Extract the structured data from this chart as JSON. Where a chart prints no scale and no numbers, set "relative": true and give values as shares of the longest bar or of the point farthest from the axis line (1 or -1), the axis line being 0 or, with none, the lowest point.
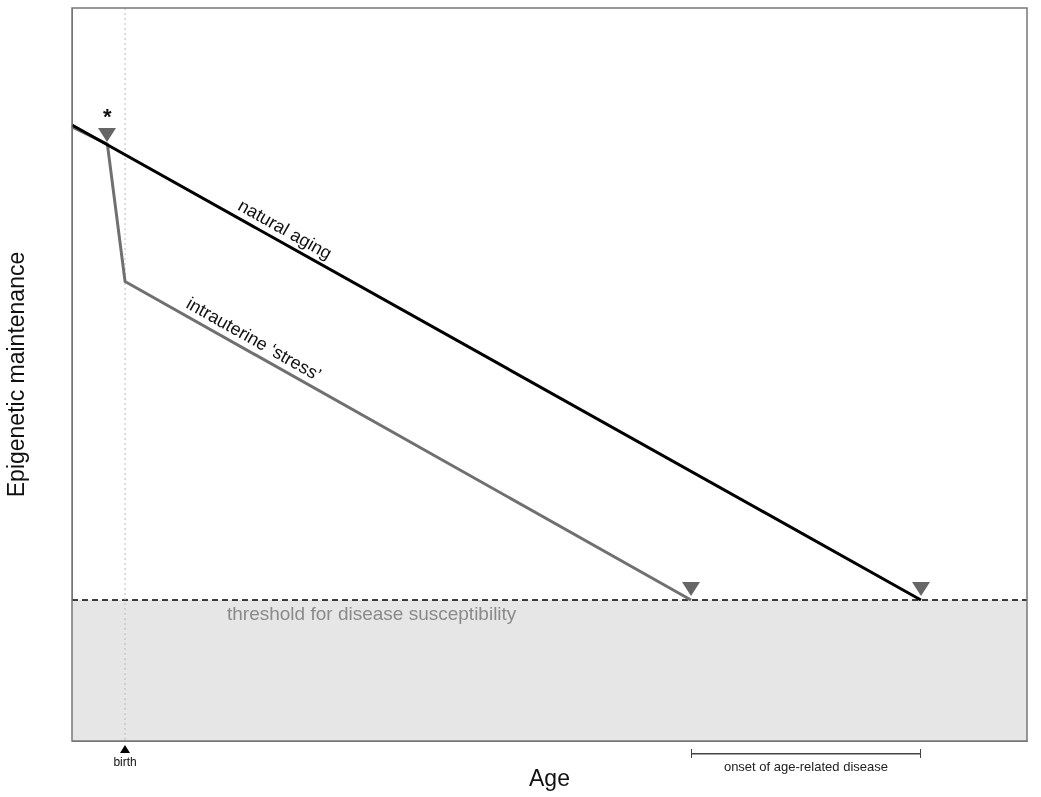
{
  "chart_data": {
    "type": "line",
    "relative": true,
    "xlabel": "Age",
    "ylabel": "Epigenetic maintenance",
    "categories": [
      null,
      null,
      null,
      null,
      null,
      null,
      null,
      null,
      null,
      null,
      null,
      null,
      null,
      null,
      null,
      null,
      null,
      null,
      null,
      null,
      null,
      null,
      null,
      null,
      null,
      null,
      null,
      null,
      null,
      null,
      null,
      null,
      null,
      null,
      null,
      null,
      null,
      null,
      null,
      null,
      null,
      null,
      null,
      null,
      null,
      null,
      null,
      null,
      null,
      null,
      null,
      null,
      null,
      null,
      null
    ],
    "series": [
      {
        "color": "#000000",
        "values": [
          1,
          null,
          null,
          null,
          null,
          null,
          null,
          null,
          null,
          null,
          null,
          null,
          null,
          null,
          null,
          null,
          null,
          null,
          null,
          null,
          null,
          null,
          null,
          null,
          null,
          null,
          null,
          null,
          null,
          null,
          null,
          null,
          null,
          null,
          null,
          null,
          null,
          null,
          null,
          null,
          null,
          null,
          null,
          null,
          null,
          null,
          null,
          null,
          0.229,
          null,
          null,
          null,
          null,
          null,
          null
        ]
      },
      {
        "color": "#707070",
        "values": [
          0.997,
          null,
          0.969,
          0.746,
          null,
          null,
          null,
          null,
          null,
          null,
          null,
          null,
          null,
          null,
          null,
          null,
          null,
          null,
          null,
          null,
          null,
          null,
          null,
          null,
          null,
          null,
          null,
          null,
          null,
          null,
          null,
          null,
          null,
          null,
          null,
          0.229,
          null,
          null,
          null,
          null,
          null,
          null,
          null,
          null,
          null,
          null,
          null,
          null,
          null,
          null,
          null,
          null,
          null,
          null,
          null
        ]
      }
    ],
    "ref_lines": [
      {
        "axis": "y",
        "value": 0.229,
        "label": "threshold for disease susceptibility",
        "color": "#000000",
        "line_style": "dashed"
      }
    ],
    "bands": [
      {
        "axis": "y",
        "from": 0,
        "to": 0.229,
        "color": "#e6e6e6"
      }
    ],
    "annotations": [
      "natural aging",
      "intrauterine ‘stress’",
      "*",
      "onset of age-related disease",
      "birth"
    ],
    "legend": false,
    "grid": false,
    "marker": "none",
    "line_style": "solid"
  }
}
